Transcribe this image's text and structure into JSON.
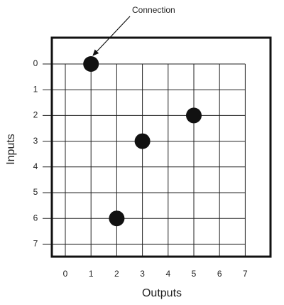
{
  "annotation": "Connection",
  "x_axis": {
    "label": "Outputs",
    "ticks": [
      0,
      1,
      2,
      3,
      4,
      5,
      6,
      7
    ]
  },
  "y_axis": {
    "label": "Inputs",
    "ticks": [
      0,
      1,
      2,
      3,
      4,
      5,
      6,
      7
    ]
  },
  "connections": [
    {
      "input": 0,
      "output": 1
    },
    {
      "input": 2,
      "output": 5
    },
    {
      "input": 3,
      "output": 3
    },
    {
      "input": 6,
      "output": 2
    }
  ]
}
